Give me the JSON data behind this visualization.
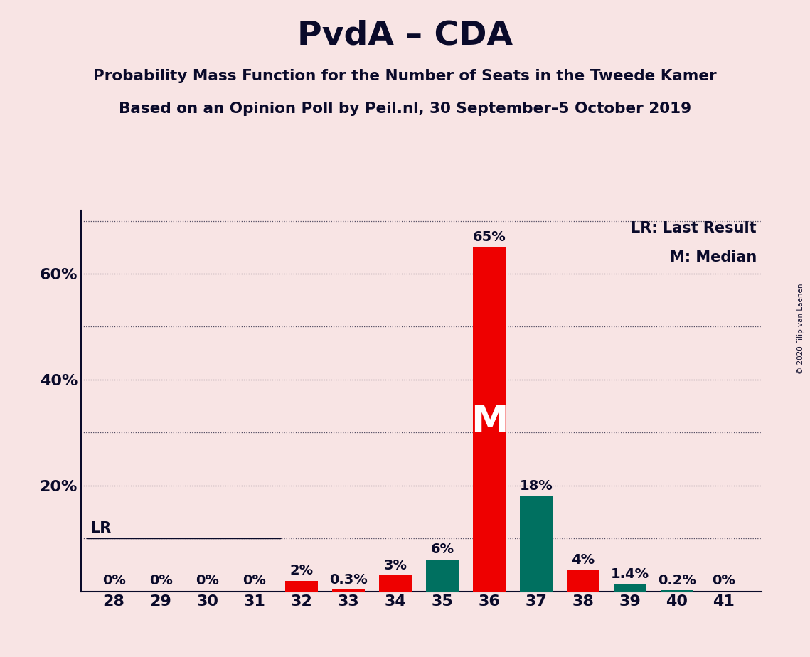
{
  "title": "PvdA – CDA",
  "subtitle1": "Probability Mass Function for the Number of Seats in the Tweede Kamer",
  "subtitle2": "Based on an Opinion Poll by Peil.nl, 30 September–5 October 2019",
  "copyright": "© 2020 Filip van Laenen",
  "seats": [
    28,
    29,
    30,
    31,
    32,
    33,
    34,
    35,
    36,
    37,
    38,
    39,
    40,
    41
  ],
  "red_values": [
    0.0,
    0.0,
    0.0,
    0.0,
    2.0,
    0.3,
    3.0,
    0.0,
    65.0,
    0.0,
    4.0,
    0.0,
    0.0,
    0.0
  ],
  "teal_values": [
    0.0,
    0.0,
    0.0,
    0.0,
    0.0,
    0.0,
    0.0,
    6.0,
    0.0,
    18.0,
    0.0,
    1.4,
    0.2,
    0.0
  ],
  "red_color": "#EE0000",
  "teal_color": "#007060",
  "background_color": "#F8E4E4",
  "label_color": "#0A0A2A",
  "ylim": [
    0,
    72
  ],
  "lr_seat": 32,
  "median_seat": 36,
  "bar_width": 0.7
}
